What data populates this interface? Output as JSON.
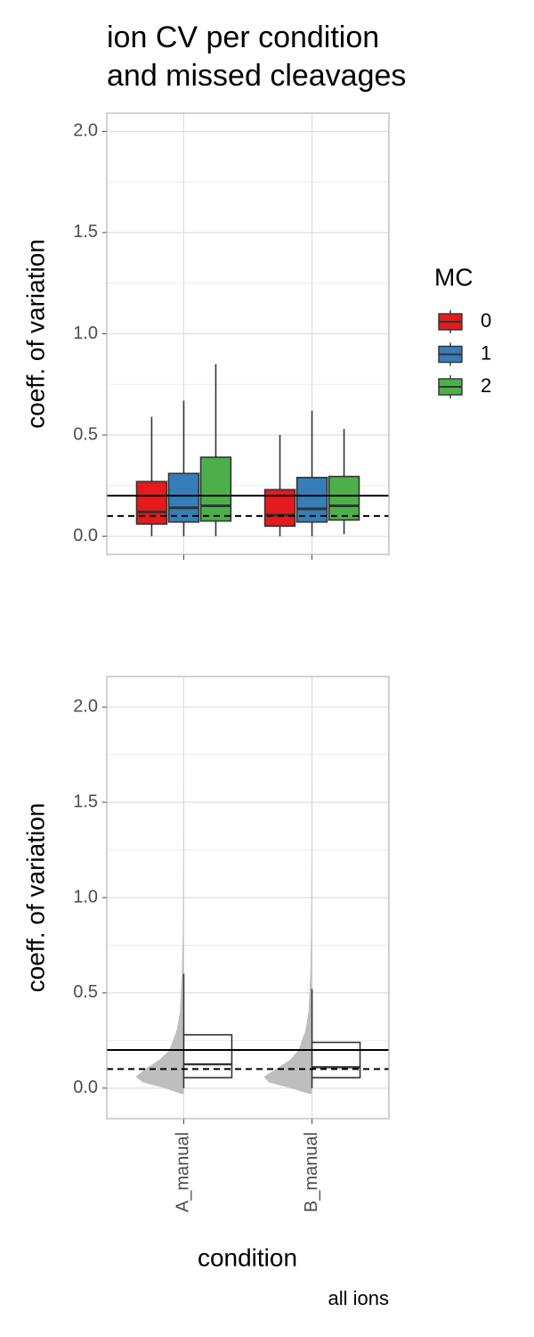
{
  "chart_data": [
    {
      "type": "boxplot",
      "title_lines": [
        "ion CV per condition",
        "and missed cleavages"
      ],
      "ylabel": "coeff. of variation",
      "ylim": [
        -0.09,
        2.09
      ],
      "yticks": [
        {
          "value": 0,
          "label": "0.0"
        },
        0.5,
        {
          "value": 1,
          "label": "1.0"
        },
        1.5,
        {
          "value": 2,
          "label": "2.0"
        }
      ],
      "minor_yticks": [
        0.25,
        0.75,
        1.25,
        1.75
      ],
      "grid": true,
      "hlines": [
        {
          "value": 0.2,
          "style": "solid"
        },
        {
          "value": 0.1,
          "style": "dashed"
        }
      ],
      "legend_title": "MC",
      "legend_position": "right",
      "series": [
        {
          "name": "0",
          "color": "#e41a1c",
          "values": [
            {
              "min": 0,
              "q1": 0.06,
              "median": 0.12,
              "q3": 0.27,
              "max": 0.59
            },
            {
              "min": 0,
              "q1": 0.05,
              "median": 0.105,
              "q3": 0.23,
              "max": 0.5
            }
          ]
        },
        {
          "name": "1",
          "color": "#377eb8",
          "values": [
            {
              "min": 0,
              "q1": 0.07,
              "median": 0.14,
              "q3": 0.31,
              "max": 0.67
            },
            {
              "min": 0,
              "q1": 0.07,
              "median": 0.135,
              "q3": 0.29,
              "max": 0.62
            }
          ]
        },
        {
          "name": "2",
          "color": "#4daf4a",
          "values": [
            {
              "min": 0,
              "q1": 0.075,
              "median": 0.15,
              "q3": 0.39,
              "max": 0.85
            },
            {
              "min": 0.01,
              "q1": 0.08,
              "median": 0.15,
              "q3": 0.295,
              "max": 0.53
            }
          ]
        }
      ]
    },
    {
      "type": "raincloud",
      "ylabel": "coeff. of variation",
      "xlabel": "condition",
      "caption": "all ions",
      "categories": [
        "A_manual",
        "B_manual"
      ],
      "ylim": [
        -0.16,
        2.16
      ],
      "yticks": [
        {
          "value": 0,
          "label": "0.0"
        },
        0.5,
        {
          "value": 1,
          "label": "1.0"
        },
        1.5,
        {
          "value": 2,
          "label": "2.0"
        }
      ],
      "minor_yticks": [
        0.25,
        0.75,
        1.25,
        1.75
      ],
      "grid": true,
      "hlines": [
        {
          "value": 0.2,
          "style": "solid"
        },
        {
          "value": 0.1,
          "style": "dashed"
        }
      ],
      "violin_color": "#bebebe",
      "box_color": "#ffffff",
      "boxes": [
        {
          "min": 0,
          "q1": 0.055,
          "median": 0.125,
          "q3": 0.28,
          "max": 0.6
        },
        {
          "min": 0,
          "q1": 0.055,
          "median": 0.11,
          "q3": 0.24,
          "max": 0.52
        }
      ],
      "violins": [
        {
          "y": [
            -0.03,
            0,
            0.03,
            0.06,
            0.1,
            0.15,
            0.2,
            0.3,
            0.4,
            0.6,
            0.8,
            1.2,
            1.8
          ],
          "density": [
            0.05,
            0.4,
            0.85,
            1,
            0.8,
            0.5,
            0.3,
            0.15,
            0.08,
            0.04,
            0.02,
            0.01,
            0
          ]
        },
        {
          "y": [
            -0.03,
            0,
            0.03,
            0.06,
            0.1,
            0.15,
            0.2,
            0.3,
            0.4,
            0.6,
            0.8,
            1.2,
            1.9
          ],
          "density": [
            0.05,
            0.45,
            0.9,
            1,
            0.75,
            0.45,
            0.28,
            0.14,
            0.07,
            0.035,
            0.02,
            0.01,
            0
          ]
        }
      ]
    }
  ]
}
